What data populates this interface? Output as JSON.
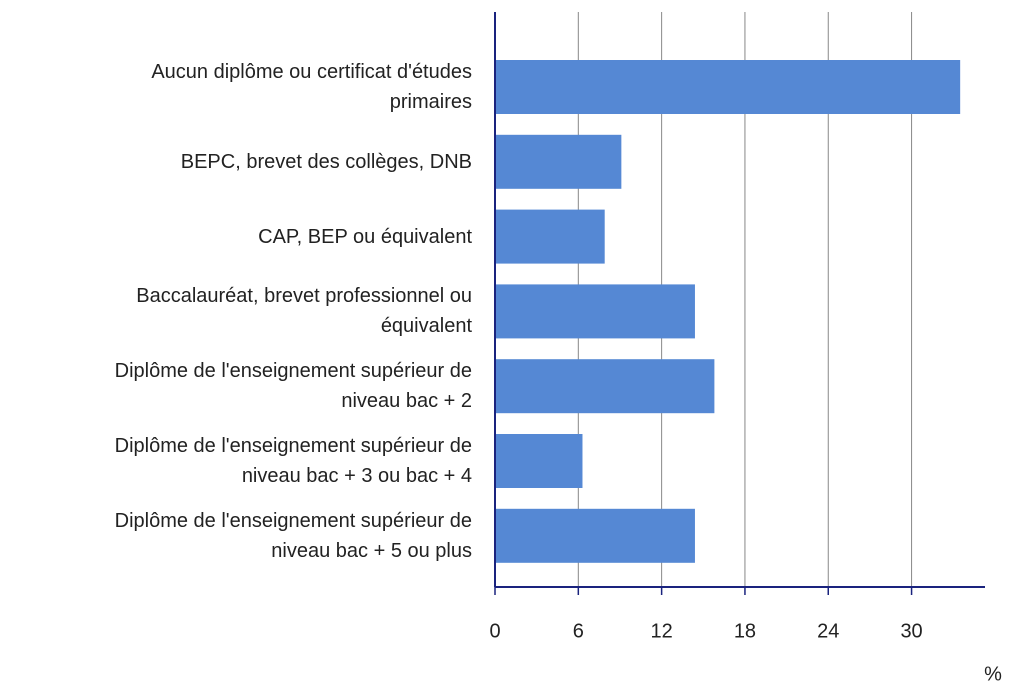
{
  "chart_data": {
    "type": "barh",
    "categories": [
      "Aucun diplôme ou certificat d'études\nprimaires",
      "BEPC, brevet des collèges, DNB",
      "CAP, BEP ou équivalent",
      "Baccalauréat, brevet professionnel ou\néquivalent",
      "Diplôme de l'enseignement supérieur de\nniveau bac + 2",
      "Diplôme de l'enseignement supérieur de\nniveau bac + 3 ou bac + 4",
      "Diplôme de l'enseignement supérieur de\nniveau bac + 5 ou plus"
    ],
    "values": [
      33.5,
      9.1,
      7.9,
      14.4,
      15.8,
      6.3,
      14.4
    ],
    "color": "#5588d4",
    "xlabel": "%",
    "xlim": [
      0,
      35
    ],
    "xticks": [
      0,
      6,
      12,
      18,
      24,
      30
    ],
    "grid": true
  }
}
